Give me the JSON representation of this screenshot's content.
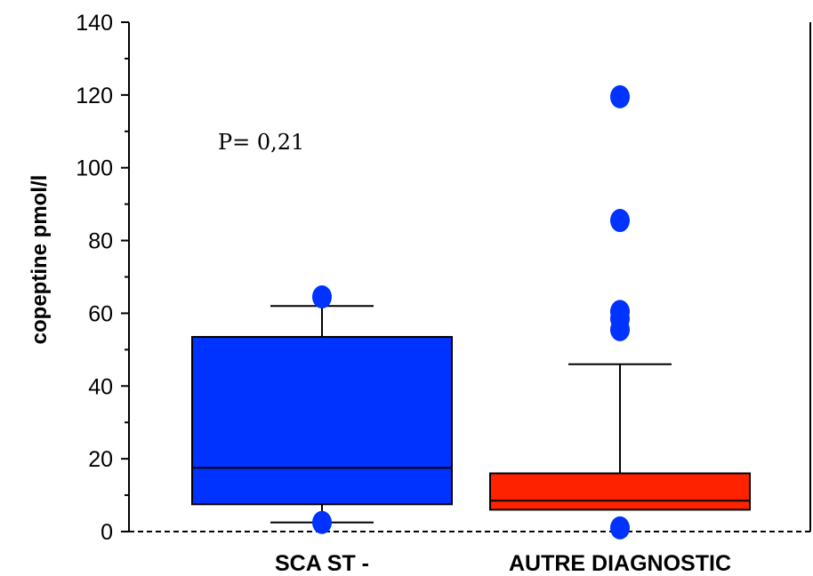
{
  "chart_data": {
    "type": "box",
    "ylabel": "copeptine pmol/l",
    "annotation": "P= 0,21",
    "ylim": [
      0,
      140
    ],
    "yticks": [
      0,
      20,
      40,
      60,
      80,
      100,
      120,
      140
    ],
    "categories": [
      "SCA ST -",
      "AUTRE DIAGNOSTIC"
    ],
    "boxes": [
      {
        "category": "SCA ST -",
        "color": "#0033ff",
        "whisker_low": 2.5,
        "q1": 7.5,
        "median": 17.5,
        "q3": 53.5,
        "whisker_high": 62,
        "outliers": [
          2.5,
          64.5
        ]
      },
      {
        "category": "AUTRE DIAGNOSTIC",
        "color": "#ff2200",
        "whisker_low": 6,
        "q1": 6,
        "median": 8.5,
        "q3": 16,
        "whisker_high": 46,
        "outliers": [
          1,
          55.5,
          58.5,
          60.5,
          85.5,
          119.5
        ]
      }
    ],
    "grid": false,
    "baseline_style": "dashed"
  }
}
